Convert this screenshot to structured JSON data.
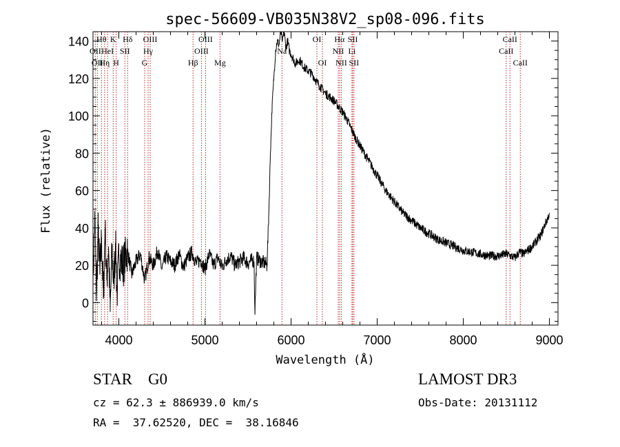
{
  "chart_data": {
    "type": "line",
    "title": "spec-56609-VB035N38V2_sp08-096.fits",
    "xlabel": "Wavelength (Å)",
    "ylabel": "Flux (relative)",
    "xlim": [
      3700,
      9100
    ],
    "ylim": [
      -12,
      145
    ],
    "xticks": [
      4000,
      5000,
      6000,
      7000,
      8000,
      9000
    ],
    "yticks": [
      0,
      20,
      40,
      60,
      80,
      100,
      120,
      140
    ],
    "grid": false,
    "line_color": "#000000",
    "marker_color": "#b22222",
    "series": [
      {
        "name": "flux",
        "x": [
          3700,
          3720,
          3740,
          3760,
          3780,
          3800,
          3820,
          3840,
          3860,
          3880,
          3900,
          3920,
          3940,
          3960,
          3980,
          4000,
          4050,
          4100,
          4150,
          4200,
          4250,
          4300,
          4350,
          4400,
          4450,
          4500,
          4550,
          4600,
          4650,
          4700,
          4750,
          4800,
          4850,
          4900,
          4950,
          5000,
          5050,
          5100,
          5150,
          5200,
          5250,
          5300,
          5350,
          5400,
          5450,
          5500,
          5550,
          5570,
          5580,
          5600,
          5650,
          5700,
          5720,
          5740,
          5760,
          5780,
          5800,
          5820,
          5840,
          5860,
          5880,
          5900,
          5920,
          5940,
          5960,
          5980,
          6000,
          6050,
          6100,
          6150,
          6200,
          6250,
          6300,
          6350,
          6400,
          6450,
          6500,
          6550,
          6600,
          6650,
          6700,
          6750,
          6800,
          6850,
          6900,
          6950,
          7000,
          7050,
          7100,
          7150,
          7200,
          7300,
          7400,
          7500,
          7600,
          7700,
          7800,
          7900,
          8000,
          8100,
          8200,
          8300,
          8400,
          8500,
          8550,
          8600,
          8650,
          8700,
          8750,
          8800,
          8850,
          8900,
          8950,
          8980,
          9000
        ],
        "values": [
          10,
          45,
          5,
          38,
          15,
          35,
          2,
          40,
          12,
          30,
          -5,
          28,
          10,
          32,
          5,
          25,
          20,
          28,
          15,
          22,
          26,
          12,
          24,
          20,
          28,
          18,
          25,
          22,
          20,
          26,
          19,
          24,
          27,
          21,
          23,
          18,
          26,
          20,
          24,
          19,
          23,
          25,
          20,
          22,
          24,
          21,
          23,
          22,
          -5,
          24,
          22,
          21,
          20,
          45,
          80,
          105,
          120,
          135,
          140,
          138,
          145,
          140,
          145,
          136,
          140,
          135,
          133,
          128,
          130,
          126,
          124,
          122,
          118,
          115,
          112,
          110,
          108,
          105,
          102,
          98,
          93,
          88,
          84,
          80,
          76,
          72,
          68,
          64,
          60,
          57,
          54,
          48,
          44,
          40,
          37,
          34,
          32,
          30,
          28,
          27,
          26,
          25,
          25,
          26,
          25,
          24,
          27,
          26,
          28,
          30,
          33,
          36,
          42,
          45,
          48
        ]
      }
    ],
    "lines": [
      {
        "x": 3727,
        "label": "OII",
        "row": 1,
        "pos": "center"
      },
      {
        "x": 3750,
        "label": "OII",
        "row": 2,
        "pos": "center"
      },
      {
        "x": 3798,
        "label": "Hθ",
        "row": 0,
        "pos": "center"
      },
      {
        "x": 3835,
        "label": "Hη",
        "row": 2,
        "pos": "center"
      },
      {
        "x": 3869,
        "label": "HeI",
        "row": 1,
        "pos": "center"
      },
      {
        "x": 3934,
        "label": "K",
        "row": 0,
        "pos": "center"
      },
      {
        "x": 3969,
        "label": "H",
        "row": 2,
        "pos": "center"
      },
      {
        "x": 4070,
        "label": "SII",
        "row": 1,
        "pos": "center"
      },
      {
        "x": 4102,
        "label": "Hδ",
        "row": 0,
        "pos": "center"
      },
      {
        "x": 4300,
        "label": "G",
        "row": 2,
        "pos": "center"
      },
      {
        "x": 4340,
        "label": "Hγ",
        "row": 1,
        "pos": "center"
      },
      {
        "x": 4364,
        "label": "OIII",
        "row": 0,
        "pos": "center"
      },
      {
        "x": 4862,
        "label": "Hβ",
        "row": 2,
        "pos": "center"
      },
      {
        "x": 4959,
        "label": "OIII",
        "row": 1,
        "pos": "center"
      },
      {
        "x": 5007,
        "label": "OIII",
        "row": 0,
        "pos": "center"
      },
      {
        "x": 5175,
        "label": "Mg",
        "row": 2,
        "pos": "center"
      },
      {
        "x": 5894,
        "label": "Na",
        "row": 1,
        "pos": "center"
      },
      {
        "x": 6300,
        "label": "OI",
        "row": 0,
        "pos": "center"
      },
      {
        "x": 6364,
        "label": "OI",
        "row": 2,
        "pos": "center"
      },
      {
        "x": 6548,
        "label": "NII",
        "row": 1,
        "pos": "center"
      },
      {
        "x": 6563,
        "label": "Hα",
        "row": 0,
        "pos": "center"
      },
      {
        "x": 6583,
        "label": "NII",
        "row": 2,
        "pos": "center"
      },
      {
        "x": 6707,
        "label": "Li",
        "row": 1,
        "pos": "center"
      },
      {
        "x": 6716,
        "label": "SII",
        "row": 0,
        "pos": "center"
      },
      {
        "x": 6731,
        "label": "SII",
        "row": 2,
        "pos": "center"
      },
      {
        "x": 8498,
        "label": "CaII",
        "row": 1,
        "pos": "center"
      },
      {
        "x": 8542,
        "label": "CaII",
        "row": 0,
        "pos": "center"
      },
      {
        "x": 8662,
        "label": "CaII",
        "row": 2,
        "pos": "center"
      }
    ]
  },
  "info": {
    "class_label": "STAR    G0",
    "survey": "LAMOST DR3",
    "redshift": "cz = 62.3 ± 886939.0 km/s",
    "obs_date": "Obs-Date: 20131112",
    "coords": "RA =  37.62520, DEC =  38.16846"
  }
}
